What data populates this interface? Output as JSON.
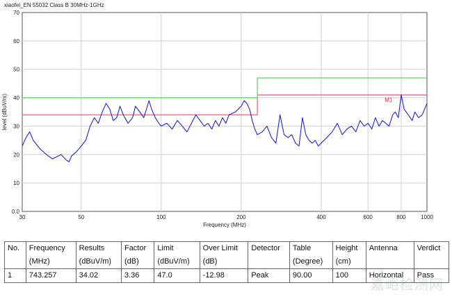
{
  "chart_title": "xiaofei_EN 55032 Class B 30MHz-1GHz",
  "colors": {
    "trace": "#2222cc",
    "limit_qp": "#e06080",
    "limit_avg": "#66cc66",
    "grid": "#d0d0d0"
  },
  "chart_data": {
    "type": "line",
    "xlabel": "Frequency (MHz)",
    "ylabel": "level (dBuV/m)",
    "xscale": "log",
    "xlim": [
      30,
      1000
    ],
    "ylim": [
      0,
      70
    ],
    "x_ticks": [
      "30",
      "50",
      "100",
      "200",
      "400",
      "600",
      "800",
      "1000"
    ],
    "x_tick_values": [
      30,
      50,
      100,
      200,
      400,
      600,
      800,
      1000
    ],
    "y_ticks": [
      "0.0",
      "10",
      "20",
      "30",
      "40",
      "50",
      "60",
      "70"
    ],
    "y_tick_values": [
      0,
      10,
      20,
      30,
      40,
      50,
      60,
      70
    ],
    "grid": true,
    "limit_lines": [
      {
        "points": [
          [
            30,
            34
          ],
          [
            230,
            34
          ],
          [
            230,
            41
          ],
          [
            1000,
            41
          ]
        ]
      },
      {
        "points": [
          [
            30,
            40
          ],
          [
            230,
            40
          ],
          [
            230,
            47
          ],
          [
            1000,
            47
          ]
        ]
      }
    ],
    "series": [
      {
        "points": [
          [
            30,
            23
          ],
          [
            31,
            26
          ],
          [
            32,
            28
          ],
          [
            33,
            25
          ],
          [
            35,
            22
          ],
          [
            37,
            20
          ],
          [
            39,
            18.5
          ],
          [
            40,
            19
          ],
          [
            42,
            20
          ],
          [
            44,
            18
          ],
          [
            45,
            17.5
          ],
          [
            46,
            19.5
          ],
          [
            48,
            21
          ],
          [
            50,
            23
          ],
          [
            52,
            25
          ],
          [
            54,
            30
          ],
          [
            56,
            33
          ],
          [
            58,
            31
          ],
          [
            60,
            35
          ],
          [
            62,
            38
          ],
          [
            64,
            36
          ],
          [
            66,
            32
          ],
          [
            68,
            33
          ],
          [
            70,
            37
          ],
          [
            72,
            34
          ],
          [
            75,
            31
          ],
          [
            78,
            33
          ],
          [
            80,
            37
          ],
          [
            83,
            35
          ],
          [
            86,
            33
          ],
          [
            88,
            36
          ],
          [
            90,
            39
          ],
          [
            92,
            36
          ],
          [
            95,
            33
          ],
          [
            98,
            31
          ],
          [
            100,
            30
          ],
          [
            105,
            31
          ],
          [
            110,
            29
          ],
          [
            115,
            32
          ],
          [
            120,
            30
          ],
          [
            125,
            28
          ],
          [
            130,
            31
          ],
          [
            135,
            34
          ],
          [
            140,
            32
          ],
          [
            145,
            30
          ],
          [
            150,
            31
          ],
          [
            155,
            29
          ],
          [
            160,
            32
          ],
          [
            165,
            30
          ],
          [
            170,
            33
          ],
          [
            175,
            31
          ],
          [
            180,
            34
          ],
          [
            190,
            35
          ],
          [
            200,
            37
          ],
          [
            205,
            39
          ],
          [
            210,
            38
          ],
          [
            215,
            36
          ],
          [
            220,
            32
          ],
          [
            225,
            29
          ],
          [
            230,
            27
          ],
          [
            240,
            28
          ],
          [
            250,
            30
          ],
          [
            260,
            26
          ],
          [
            270,
            24
          ],
          [
            280,
            34
          ],
          [
            290,
            27
          ],
          [
            300,
            26
          ],
          [
            310,
            27
          ],
          [
            320,
            24
          ],
          [
            330,
            23
          ],
          [
            340,
            33
          ],
          [
            350,
            27
          ],
          [
            360,
            25
          ],
          [
            370,
            24
          ],
          [
            380,
            25
          ],
          [
            390,
            23
          ],
          [
            400,
            24
          ],
          [
            420,
            26
          ],
          [
            440,
            28
          ],
          [
            460,
            31
          ],
          [
            480,
            27
          ],
          [
            500,
            29
          ],
          [
            520,
            30
          ],
          [
            540,
            28
          ],
          [
            560,
            32
          ],
          [
            580,
            30
          ],
          [
            600,
            31
          ],
          [
            620,
            29
          ],
          [
            640,
            33
          ],
          [
            660,
            30
          ],
          [
            680,
            32
          ],
          [
            700,
            31
          ],
          [
            720,
            30
          ],
          [
            743.257,
            34.02
          ],
          [
            760,
            35
          ],
          [
            780,
            33
          ],
          [
            800,
            41
          ],
          [
            820,
            36
          ],
          [
            850,
            34
          ],
          [
            880,
            32
          ],
          [
            900,
            35
          ],
          [
            930,
            33
          ],
          [
            960,
            34
          ],
          [
            990,
            37
          ],
          [
            1000,
            38
          ]
        ]
      }
    ],
    "markers": [
      {
        "label": "M1",
        "x": 743.257,
        "y": 34.02
      }
    ]
  },
  "results_table": {
    "headers": [
      [
        "No.",
        ""
      ],
      [
        "Frequency",
        "(MHz)"
      ],
      [
        "Results",
        "(dBuV/m)"
      ],
      [
        "Factor",
        "(dB)"
      ],
      [
        "Limit",
        "(dBuV/m)"
      ],
      [
        "Over Limit",
        "(dB)"
      ],
      [
        "Detector",
        ""
      ],
      [
        "Table",
        "(Degree)"
      ],
      [
        "Height",
        "(cm)"
      ],
      [
        "Antenna",
        ""
      ],
      [
        "Verdict",
        ""
      ]
    ],
    "rows": [
      [
        "1",
        "743.257",
        "34.02",
        "3.36",
        "47.0",
        "-12.98",
        "Peak",
        "90.00",
        "100",
        "Horizontal",
        "Pass"
      ]
    ]
  },
  "watermark": "嘉峪检测网"
}
